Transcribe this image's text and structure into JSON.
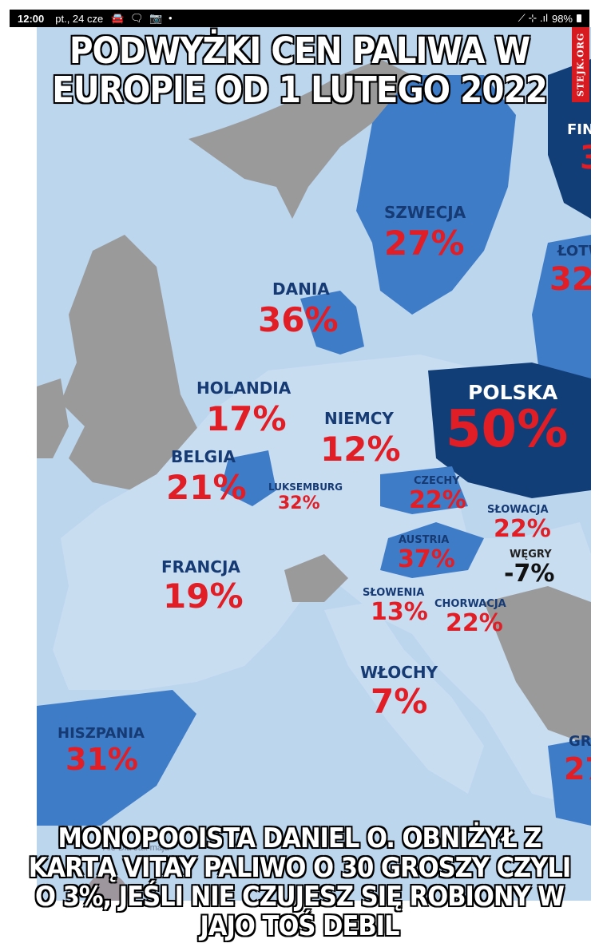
{
  "status_bar": {
    "time": "12:00",
    "date": "pt., 24 cze",
    "notification_icons": "🚘 🗨 📷 •",
    "signal_icons": "⟋ ⊹ .ıl",
    "battery": "98%"
  },
  "meme": {
    "top_caption": "PODWYŻKI CEN PALIWA W EUROPIE OD 1 LUTEGO 2022",
    "bottom_caption": "MONOPOOISTA DANIEL O. OBNIŻYŁ Z KARTĄ VITAY PALIWO O 30 GROSZY CZYLI O 3%, JEŚLI NIE CZUJESZ SIĘ ROBIONY W JAJO TOŚ DEBIL",
    "watermark": "STEJK.ORG",
    "author_faint": "~ Ale Dla Jak maja"
  },
  "colors": {
    "sea": "#bcd6ee",
    "non_eu_land": "#9a9a9a",
    "light_land": "#c9ddf1",
    "mid_land": "#3f7cc7",
    "dark_land": "#123e78",
    "percent_red": "#e11d26",
    "country_navy": "#163a73"
  },
  "countries": [
    {
      "name": "SZWECJA",
      "value": "27%"
    },
    {
      "name": "DANIA",
      "value": "36%"
    },
    {
      "name": "HOLANDIA",
      "value": "17%"
    },
    {
      "name": "NIEMCY",
      "value": "12%"
    },
    {
      "name": "POLSKA",
      "value": "50%"
    },
    {
      "name": "BELGIA",
      "value": "21%"
    },
    {
      "name": "LUKSEMBURG",
      "value": "32%"
    },
    {
      "name": "CZECHY",
      "value": "22%"
    },
    {
      "name": "SŁOWACJA",
      "value": "22%"
    },
    {
      "name": "AUSTRIA",
      "value": "37%"
    },
    {
      "name": "WĘGRY",
      "value": "-7%"
    },
    {
      "name": "FRANCJA",
      "value": "19%"
    },
    {
      "name": "SŁOWENIA",
      "value": "13%"
    },
    {
      "name": "CHORWACJA",
      "value": "22%"
    },
    {
      "name": "WŁOCHY",
      "value": "7%"
    },
    {
      "name": "HISZPANIA",
      "value": "31%"
    },
    {
      "name": "FIN",
      "value": "3"
    },
    {
      "name": "ŁOTW",
      "value": "32"
    },
    {
      "name": "GR",
      "value": "27"
    }
  ]
}
